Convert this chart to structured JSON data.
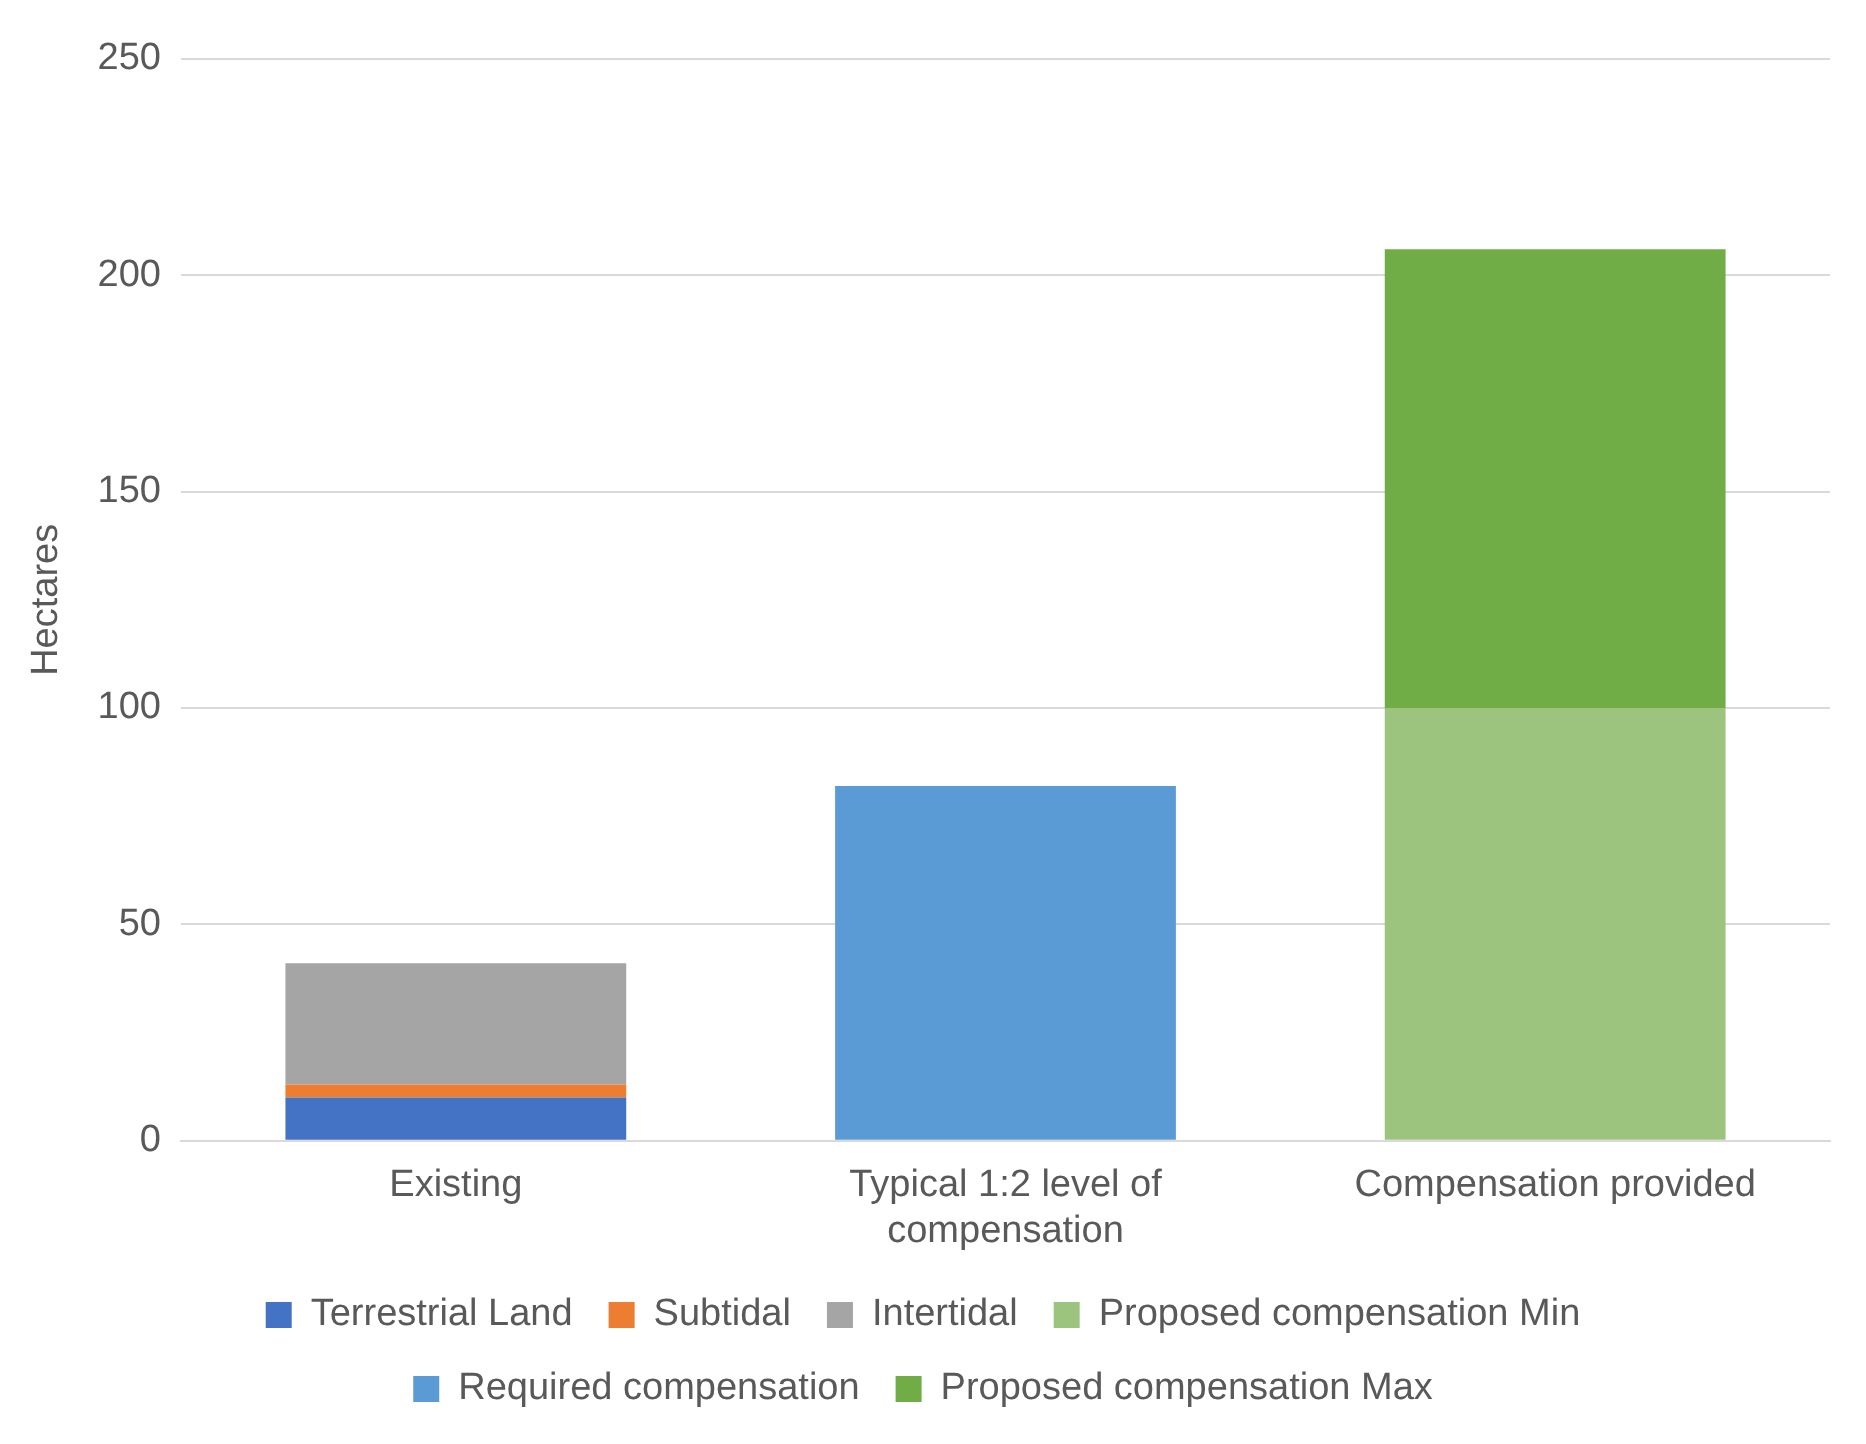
{
  "chart_data": {
    "type": "bar",
    "stacked": true,
    "ylabel": "Hectares",
    "categories": [
      "Existing",
      "Typical 1:2 level of compensation",
      "Compensation provided"
    ],
    "series": [
      {
        "name": "Terrestrial Land",
        "color": "#4472c4",
        "values": [
          10,
          null,
          null
        ]
      },
      {
        "name": "Subtidal",
        "color": "#ed7d31",
        "values": [
          3,
          null,
          null
        ]
      },
      {
        "name": "Intertidal",
        "color": "#a5a5a5",
        "values": [
          28,
          null,
          null
        ]
      },
      {
        "name": "Proposed compensation Min",
        "color": "#9cc47e",
        "values": [
          null,
          null,
          100
        ]
      },
      {
        "name": "Required compensation",
        "color": "#5b9bd5",
        "values": [
          null,
          82,
          null
        ]
      },
      {
        "name": "Proposed compensation Max",
        "color": "#70ad47",
        "values": [
          null,
          null,
          106
        ]
      }
    ],
    "ylim": [
      0,
      250
    ],
    "yticks": [
      0,
      50,
      100,
      150,
      200,
      250
    ],
    "grid": "y",
    "legend": "bottom"
  }
}
